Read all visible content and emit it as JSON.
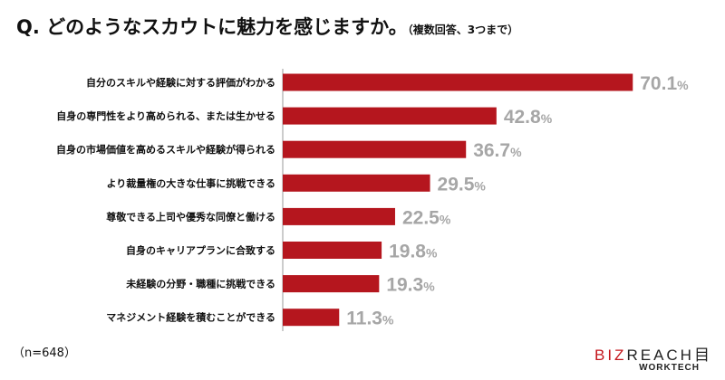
{
  "chart_data": {
    "type": "bar",
    "orientation": "horizontal",
    "title": "Q. どのようなスカウトに魅力を感じますか。",
    "subtitle": "（複数回答、3つまで）",
    "categories": [
      "自分のスキルや経験に対する評価がわかる",
      "自身の専門性をより高められる、または生かせる",
      "自身の市場価値を高めるスキルや経験が得られる",
      "より裁量権の大きな仕事に挑戦できる",
      "尊敬できる上司や優秀な同僚と働ける",
      "自身のキャリアプランに合致する",
      "未経験の分野・職種に挑戦できる",
      "マネジメント経験を積むことができる"
    ],
    "values": [
      70.1,
      42.8,
      36.7,
      29.5,
      22.5,
      19.8,
      19.3,
      11.3
    ],
    "unit": "%",
    "bar_color": "#b5161e",
    "label_color": "#a6a6a6",
    "grid": false,
    "note": "（n=648）"
  },
  "logo": {
    "main_red": "BIZ",
    "main_rest": "REACH",
    "sub": "WORKTECH"
  }
}
